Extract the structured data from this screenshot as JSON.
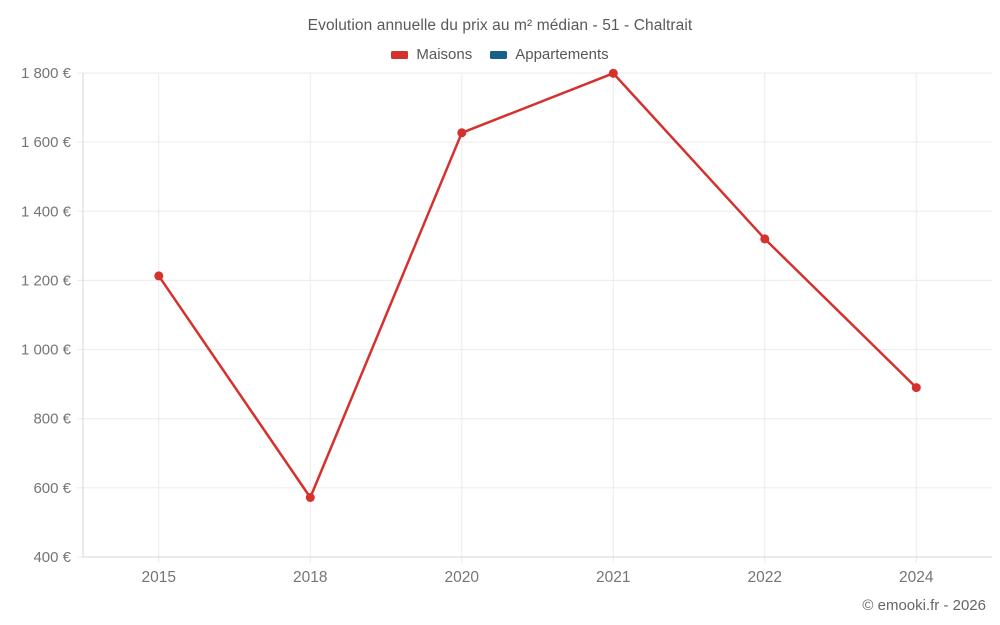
{
  "title": "Evolution annuelle du prix au m² médian - 51 - Chaltrait",
  "legend": [
    {
      "label": "Maisons",
      "color": "#d5312d"
    },
    {
      "label": "Appartements",
      "color": "#176087"
    }
  ],
  "chart_data": {
    "type": "line",
    "title": "Evolution annuelle du prix au m² médian - 51 - Chaltrait",
    "categories": [
      "2015",
      "2018",
      "2020",
      "2021",
      "2022",
      "2024"
    ],
    "series": [
      {
        "name": "Maisons",
        "color": "#d5312d",
        "values": [
          1213,
          572,
          1627,
          1799,
          1320,
          890
        ]
      },
      {
        "name": "Appartements",
        "color": "#176087",
        "values": []
      }
    ],
    "xlabel": "",
    "ylabel": "",
    "ylim": [
      400,
      1800
    ],
    "y_step": 200,
    "y_tick_labels": [
      "400 €",
      "600 €",
      "800 €",
      "1 000 €",
      "1 200 €",
      "1 400 €",
      "1 600 €",
      "1 800 €"
    ],
    "x_tick_labels": [
      "2015",
      "2018",
      "2020",
      "2021",
      "2022",
      "2024"
    ],
    "grid": true,
    "legend_position": "top",
    "currency_suffix": " €"
  },
  "footer": {
    "copyright": "© emooki.fr - 2026"
  },
  "colors": {
    "grid_line": "#ebebeb",
    "axis_border": "#d4d4d4",
    "tick_label": "#757575",
    "title_text": "#595959",
    "legend_text": "#575757"
  }
}
